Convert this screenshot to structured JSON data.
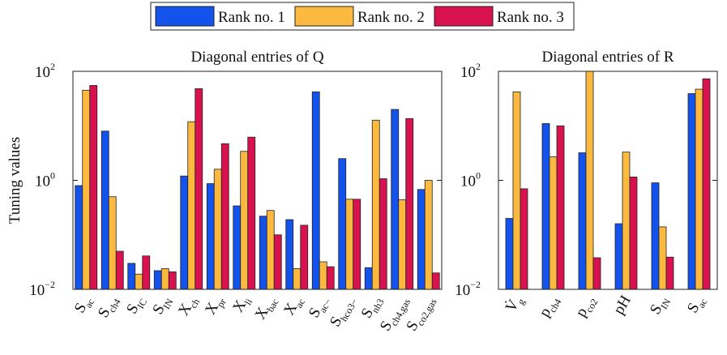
{
  "chart_data": [
    {
      "type": "bar",
      "title": "Diagonal entries of Q",
      "ylabel": "Tuning values",
      "log_scale": true,
      "categories": [
        {
          "symbol": "S",
          "subscript": "ac"
        },
        {
          "symbol": "S",
          "subscript": "ch4"
        },
        {
          "symbol": "S",
          "subscript": "IC"
        },
        {
          "symbol": "S",
          "subscript": "IN"
        },
        {
          "symbol": "X",
          "subscript": "ch"
        },
        {
          "symbol": "X",
          "subscript": "pr"
        },
        {
          "symbol": "X",
          "subscript": "li"
        },
        {
          "symbol": "X",
          "subscript": "bac"
        },
        {
          "symbol": "X",
          "subscript": "ac"
        },
        {
          "symbol": "S",
          "subscript": "ac−"
        },
        {
          "symbol": "S",
          "subscript": "hco3−"
        },
        {
          "symbol": "S",
          "subscript": "nh3"
        },
        {
          "symbol": "S",
          "subscript": "ch4,gas"
        },
        {
          "symbol": "S",
          "subscript": "co2,gas"
        }
      ],
      "series": [
        {
          "name": "Rank no. 1",
          "color": "#1452ec",
          "values": [
            0.8,
            8,
            0.03,
            0.022,
            1.2,
            0.87,
            0.34,
            0.22,
            0.19,
            42,
            2.5,
            0.025,
            20,
            0.68
          ]
        },
        {
          "name": "Rank no. 2",
          "color": "#fbb940",
          "values": [
            45,
            0.5,
            0.019,
            0.024,
            11.9,
            1.6,
            3.4,
            0.28,
            0.024,
            0.032,
            0.45,
            12.7,
            0.44,
            1.0
          ]
        },
        {
          "name": "Rank no. 3",
          "color": "#d8124f",
          "values": [
            55,
            0.05,
            0.041,
            0.021,
            48,
            4.7,
            6.2,
            0.1,
            0.15,
            0.026,
            0.45,
            1.07,
            13.6,
            0.02
          ]
        }
      ],
      "ylim": [
        0.01,
        100
      ],
      "yticks": [
        {
          "value": 0.01,
          "label": "10",
          "exponent": "−2"
        },
        {
          "value": 1,
          "label": "10",
          "exponent": "0"
        },
        {
          "value": 100,
          "label": "10",
          "exponent": "2"
        }
      ]
    },
    {
      "type": "bar",
      "title": "Diagonal entries of R",
      "log_scale": true,
      "categories": [
        {
          "symbol": "V̇",
          "subscript": "g"
        },
        {
          "symbol": "p",
          "subscript": "ch4"
        },
        {
          "symbol": "p",
          "subscript": "co2"
        },
        {
          "symbol": "pH",
          "subscript": ""
        },
        {
          "symbol": "S",
          "subscript": "IN"
        },
        {
          "symbol": "S",
          "subscript": "ac"
        }
      ],
      "series": [
        {
          "color": "#1452ec",
          "values": [
            0.2,
            11,
            3.2,
            0.16,
            0.9,
            39
          ]
        },
        {
          "color": "#fbb940",
          "values": [
            42,
            2.7,
            100,
            3.3,
            0.14,
            47
          ]
        },
        {
          "color": "#d8124f",
          "values": [
            0.7,
            10,
            0.038,
            1.15,
            0.039,
            73
          ]
        }
      ],
      "ylim": [
        0.01,
        100
      ],
      "yticks": [
        {
          "value": 0.01,
          "label": "10",
          "exponent": "−2"
        },
        {
          "value": 1,
          "label": "10",
          "exponent": "0"
        },
        {
          "value": 100,
          "label": "10",
          "exponent": "2"
        }
      ]
    }
  ]
}
